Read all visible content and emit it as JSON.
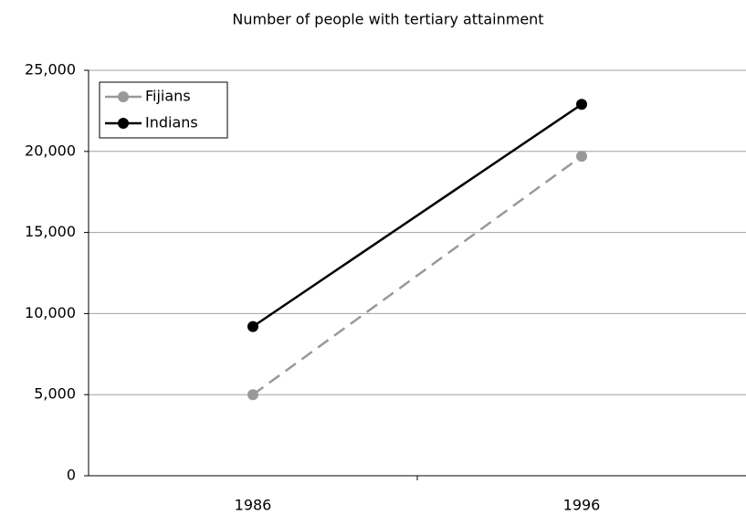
{
  "chart_data": {
    "type": "line",
    "title": "Number of people with tertiary attainment",
    "categories": [
      "1986",
      "1996"
    ],
    "series": [
      {
        "name": "Fijians",
        "color": "#999999",
        "line_style": "dashed",
        "values": [
          5000,
          19700
        ]
      },
      {
        "name": "Indians",
        "color": "#000000",
        "line_style": "solid",
        "values": [
          9200,
          22900
        ]
      }
    ],
    "ylim": [
      0,
      25000
    ],
    "yticks": [
      0,
      {
        "value": 5000,
        "label": "5,000"
      },
      {
        "value": 10000,
        "label": "10,000"
      },
      {
        "value": 15000,
        "label": "15,000"
      },
      {
        "value": 20000,
        "label": "20,000"
      },
      {
        "value": 25000,
        "label": "25,000"
      }
    ],
    "grid": true,
    "legend": "upper left"
  }
}
